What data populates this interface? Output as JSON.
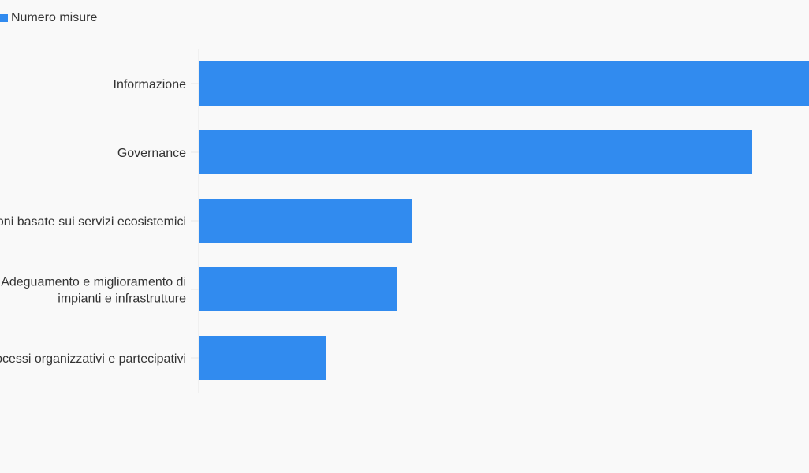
{
  "chart_data": {
    "type": "bar",
    "orientation": "horizontal",
    "categories": [
      "Informazione",
      "Governance",
      "Soluzioni basate sui servizi ecosistemici",
      "Adeguamento e miglioramento di impianti e infrastrutture",
      "Processi organizzativi e partecipativi"
    ],
    "category_lines": [
      [
        "Informazione"
      ],
      [
        "Governance"
      ],
      [
        "Soluzioni basate sui servizi ecosistemici"
      ],
      [
        "Adeguamento e miglioramento di",
        "impianti e infrastrutture"
      ],
      [
        "Processi organizzativi e partecipativi"
      ]
    ],
    "series": [
      {
        "name": "Numero misure",
        "color": "#318bef",
        "values": [
          43,
          39,
          15,
          14,
          9
        ]
      }
    ],
    "xlim": [
      0,
      43
    ],
    "grid": false,
    "legend_position": "top-left",
    "title": "",
    "xlabel": "",
    "ylabel": ""
  }
}
